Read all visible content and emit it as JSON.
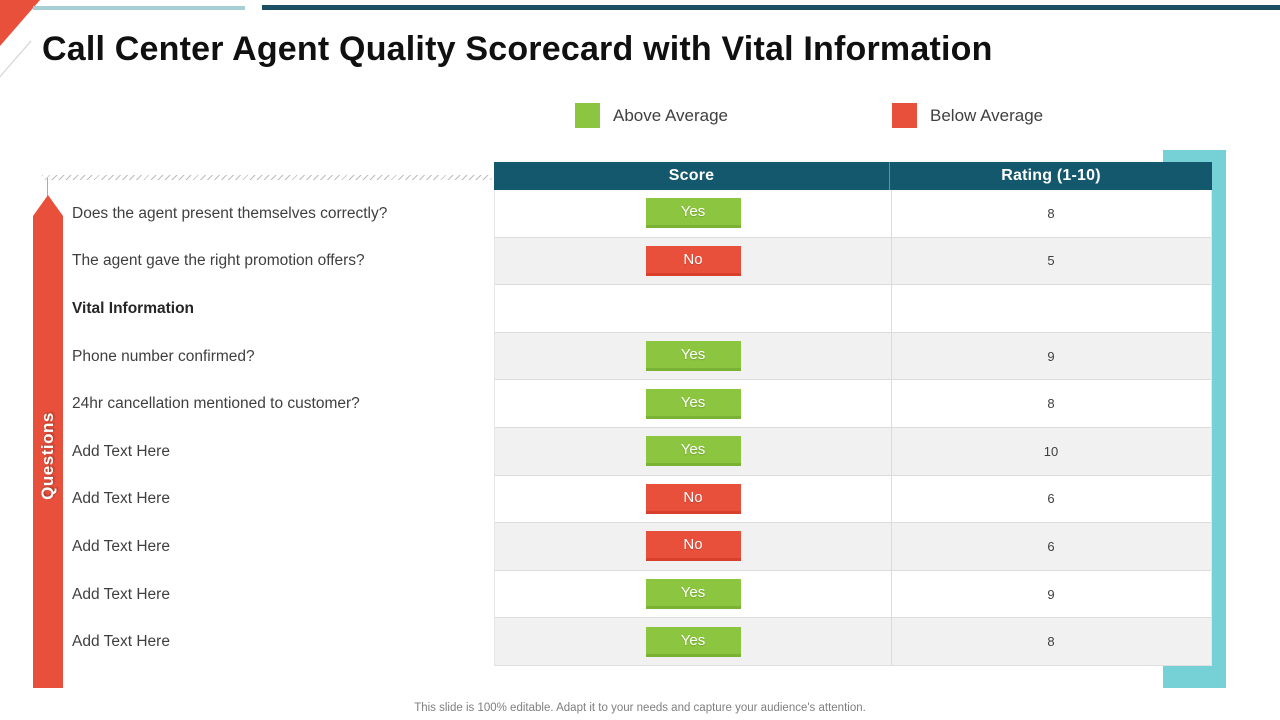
{
  "slide": {
    "title": "Call Center Agent Quality Scorecard with Vital Information",
    "footer": "This slide is 100% editable. Adapt it to your needs and capture your audience's attention."
  },
  "legend": [
    {
      "name": "above-average",
      "label": "Above Average",
      "color": "#8CC540"
    },
    {
      "name": "below-average",
      "label": "Below Average",
      "color": "#E8503C"
    }
  ],
  "table": {
    "side_label": "Questions",
    "headers": {
      "score": "Score",
      "rating": "Rating (1-10)"
    },
    "rows": [
      {
        "question": "Does the agent present themselves correctly?",
        "score": "Yes",
        "rating": "8",
        "bold": false
      },
      {
        "question": "The agent gave the right promotion offers?",
        "score": "No",
        "rating": "5",
        "bold": false
      },
      {
        "question": "Vital Information",
        "score": "",
        "rating": "",
        "bold": true
      },
      {
        "question": "Phone number confirmed?",
        "score": "Yes",
        "rating": "9",
        "bold": false
      },
      {
        "question": "24hr cancellation mentioned to customer?",
        "score": "Yes",
        "rating": "8",
        "bold": false
      },
      {
        "question": "Add Text Here",
        "score": "Yes",
        "rating": "10",
        "bold": false
      },
      {
        "question": "Add Text Here",
        "score": "No",
        "rating": "6",
        "bold": false
      },
      {
        "question": "Add Text Here",
        "score": "No",
        "rating": "6",
        "bold": false
      },
      {
        "question": "Add Text Here",
        "score": "Yes",
        "rating": "9",
        "bold": false
      },
      {
        "question": "Add Text Here",
        "score": "Yes",
        "rating": "8",
        "bold": false
      }
    ]
  },
  "colors": {
    "accent_red": "#E8503C",
    "accent_green": "#8CC540",
    "header_teal": "#14586D",
    "side_bar_teal": "#76D1D6",
    "top_line_dark": "#1B4F63",
    "top_line_light": "#A9CFD6",
    "row_alt": "#F1F1F2"
  }
}
